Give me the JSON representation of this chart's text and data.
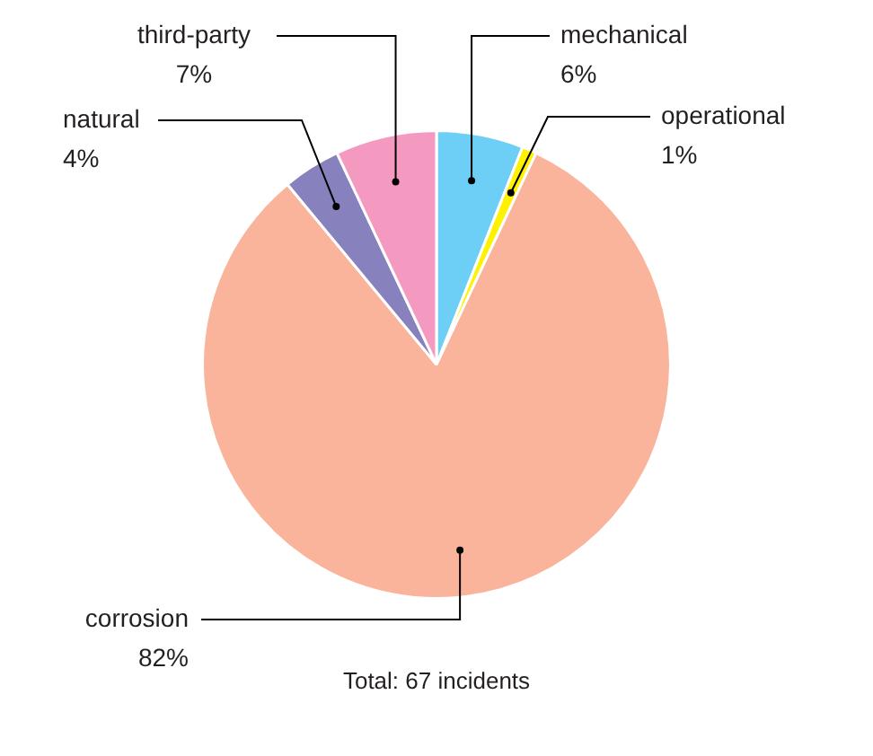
{
  "chart_data": {
    "type": "pie",
    "categories": [
      "mechanical",
      "operational",
      "corrosion",
      "natural",
      "third-party"
    ],
    "values": [
      6,
      1,
      82,
      4,
      7
    ],
    "colors": [
      "#6dcff6",
      "#fff200",
      "#f9b49b",
      "#8781bd",
      "#f49ac1"
    ],
    "value_labels": [
      "6%",
      "1%",
      "82%",
      "4%",
      "7%"
    ],
    "annotations": [
      "Total: 67 incidents"
    ]
  }
}
